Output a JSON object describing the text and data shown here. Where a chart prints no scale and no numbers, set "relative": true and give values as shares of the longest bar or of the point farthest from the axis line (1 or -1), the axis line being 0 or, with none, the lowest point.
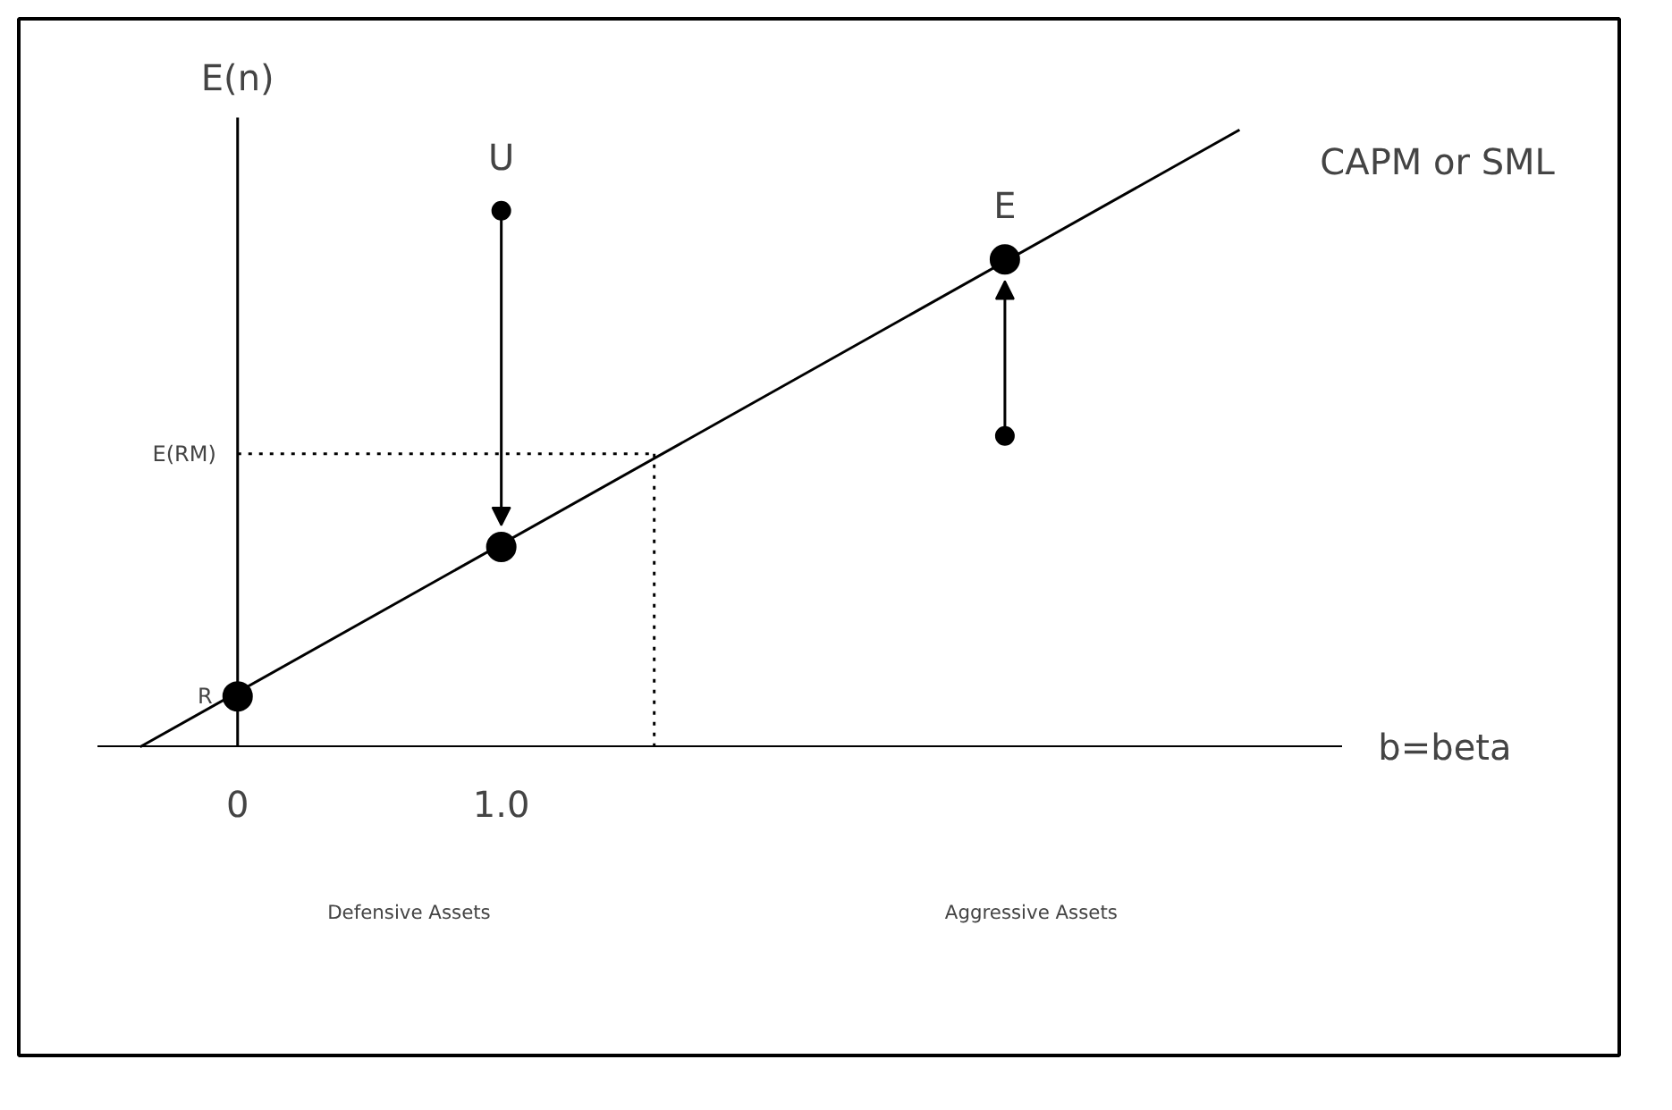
{
  "chart_data": {
    "type": "scatter",
    "relative": true,
    "xlabel": "b=beta",
    "ylabel": "E(n)",
    "xlim": [
      -0.53,
      4.19
    ],
    "xticks": [
      0,
      {
        "value": 1.0,
        "label": "1.0"
      }
    ],
    "series": [
      {
        "name": "CAPM or SML",
        "type": "line",
        "color": "#000000",
        "x": [
          -0.37,
          3.8
        ],
        "values": [
          0,
          1
        ]
      },
      {
        "color": "#000000",
        "marker": "circle",
        "x": [
          0,
          1.0,
          2.91
        ],
        "values": [
          0.082,
          0.324,
          0.79
        ]
      },
      {
        "color": "#000000",
        "marker": "circle",
        "x": [
          1.0,
          2.91
        ],
        "values": [
          0.869,
          0.504
        ]
      }
    ],
    "ref_lines": [
      {
        "axis": "y",
        "value": 0.475,
        "label": "E(RM)",
        "line_style": "dotted"
      },
      {
        "axis": "x",
        "value": 1.58,
        "label": null,
        "line_style": "dotted"
      }
    ],
    "annotations": [
      {
        "text": "R",
        "x": 0,
        "y": 0.082
      },
      {
        "text": "U",
        "x": 1.0,
        "y": 0.869
      },
      {
        "text": "E",
        "x": 2.91,
        "y": 0.79
      },
      "Defensive Assets",
      "Aggressive Assets"
    ]
  }
}
